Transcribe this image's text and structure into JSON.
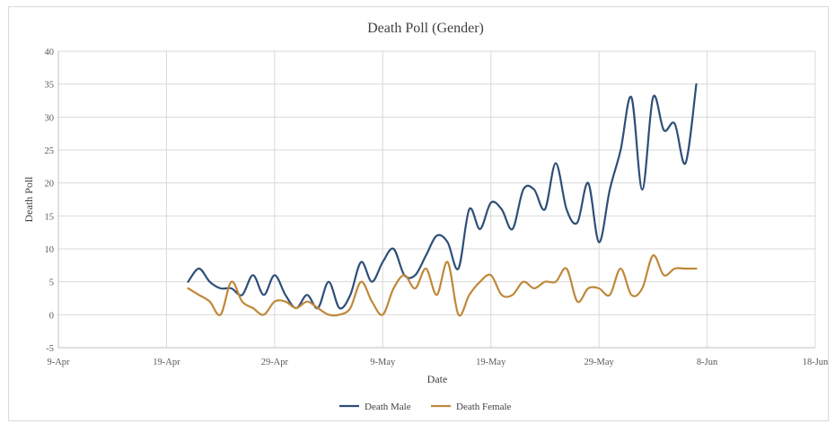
{
  "chart_data": {
    "type": "line",
    "title": "Death Poll (Gender)",
    "xlabel": "Date",
    "ylabel": "Death Poll",
    "ylim": [
      -5,
      40
    ],
    "yticks": [
      "-5",
      "0",
      "5",
      "10",
      "15",
      "20",
      "25",
      "30",
      "35",
      "40"
    ],
    "xlim": [
      "9-Apr",
      "18-Jun"
    ],
    "xticks": [
      "9-Apr",
      "19-Apr",
      "29-Apr",
      "9-May",
      "19-May",
      "29-May",
      "8-Jun",
      "18-Jun"
    ],
    "grid": true,
    "legend_position": "bottom",
    "x": [
      "21-Apr",
      "22-Apr",
      "23-Apr",
      "24-Apr",
      "25-Apr",
      "26-Apr",
      "27-Apr",
      "28-Apr",
      "29-Apr",
      "30-Apr",
      "1-May",
      "2-May",
      "3-May",
      "4-May",
      "5-May",
      "6-May",
      "7-May",
      "8-May",
      "9-May",
      "10-May",
      "11-May",
      "12-May",
      "13-May",
      "14-May",
      "15-May",
      "16-May",
      "17-May",
      "18-May",
      "19-May",
      "20-May",
      "21-May",
      "22-May",
      "23-May",
      "24-May",
      "25-May",
      "26-May",
      "27-May",
      "28-May",
      "29-May",
      "30-May",
      "31-May",
      "1-Jun",
      "2-Jun",
      "3-Jun",
      "4-Jun",
      "5-Jun",
      "6-Jun",
      "7-Jun"
    ],
    "series": [
      {
        "name": "Death Male",
        "color": "#2e4f78",
        "values": [
          5,
          7,
          5,
          4,
          4,
          3,
          6,
          3,
          6,
          3,
          1,
          3,
          1,
          5,
          1,
          3,
          8,
          5,
          8,
          10,
          6,
          6,
          9,
          12,
          11,
          7,
          16,
          13,
          17,
          16,
          13,
          19,
          19,
          16,
          23,
          16,
          14,
          20,
          11,
          19,
          25,
          33,
          19,
          33,
          28,
          29,
          23,
          35
        ]
      },
      {
        "name": "Death Female",
        "color": "#c0883a",
        "values": [
          4,
          3,
          2,
          0,
          5,
          2,
          1,
          0,
          2,
          2,
          1,
          2,
          1,
          0,
          0,
          1,
          5,
          2,
          0,
          4,
          6,
          4,
          7,
          3,
          8,
          0,
          3,
          5,
          6,
          3,
          3,
          5,
          4,
          5,
          5,
          7,
          2,
          4,
          4,
          3,
          7,
          3,
          4,
          9,
          6,
          7,
          7,
          7
        ]
      }
    ]
  }
}
